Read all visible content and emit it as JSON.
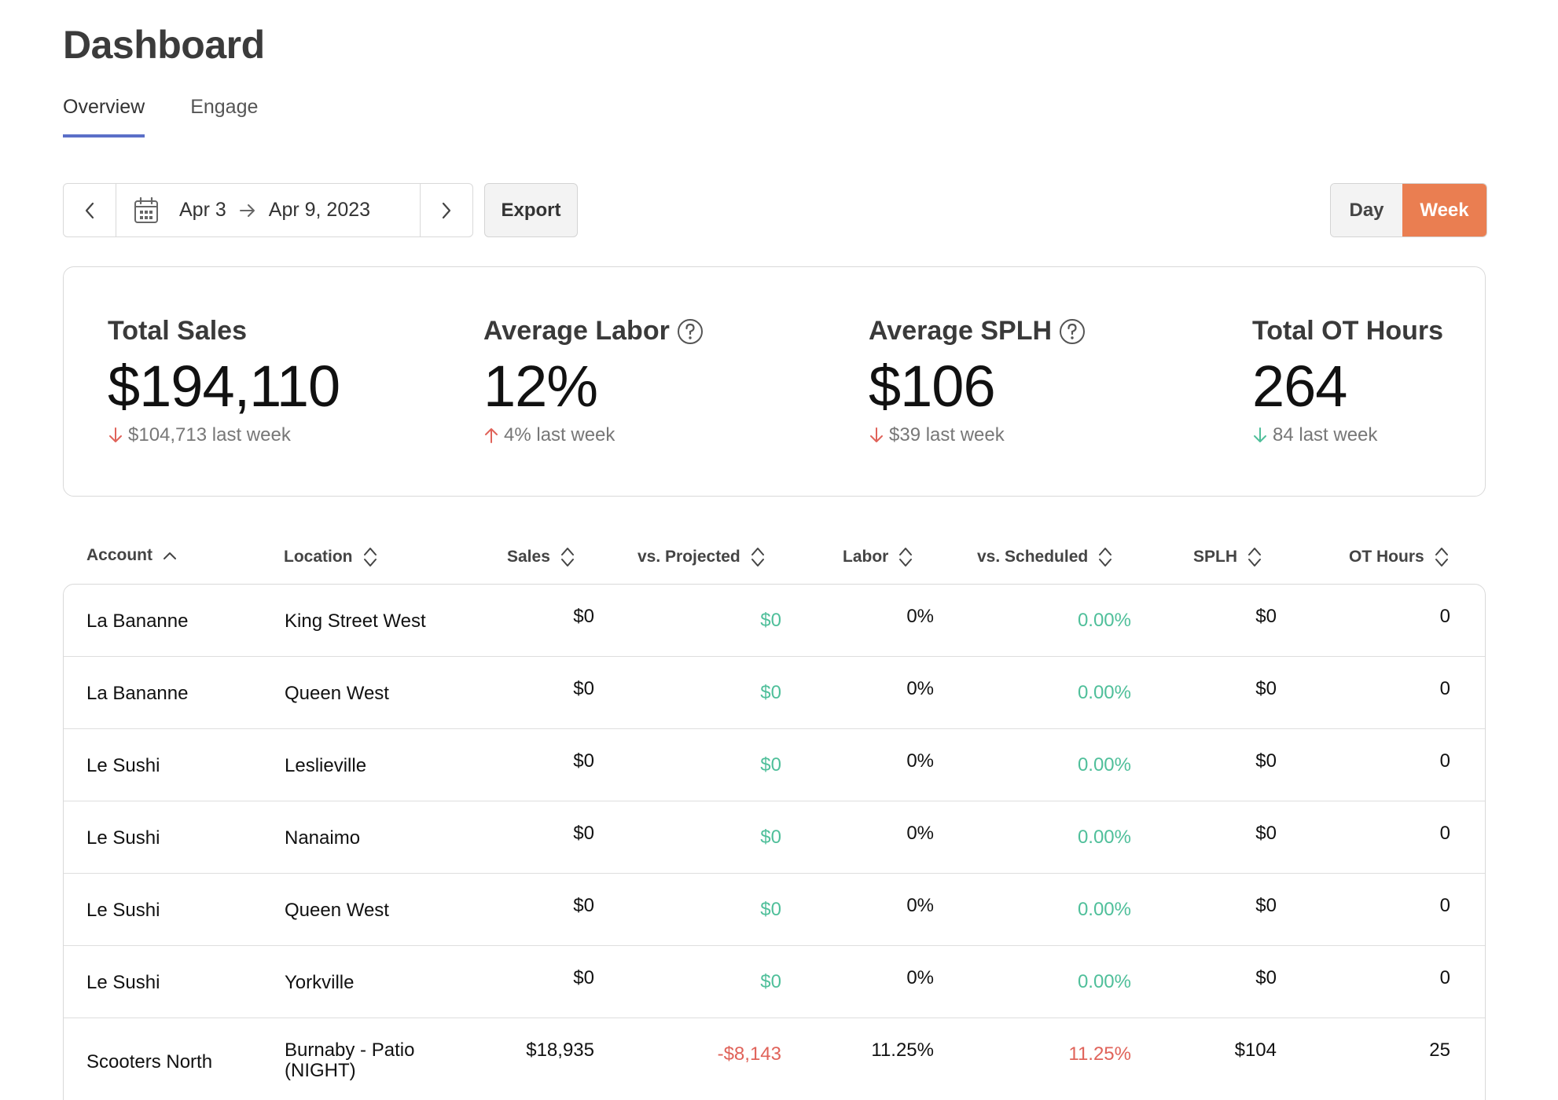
{
  "page": {
    "title": "Dashboard"
  },
  "tabs": [
    {
      "label": "Overview",
      "active": true
    },
    {
      "label": "Engage",
      "active": false
    }
  ],
  "toolbar": {
    "date_start": "Apr 3",
    "date_end": "Apr 9, 2023",
    "export_label": "Export",
    "period_day": "Day",
    "period_week": "Week",
    "period_selected": "Week"
  },
  "colors": {
    "accent": "#ea7e51",
    "tab_underline": "#5b6fc8",
    "positive": "#4fbf9a",
    "negative": "#e0635a"
  },
  "stats": [
    {
      "label": "Total Sales",
      "value": "$194,110",
      "change": "$104,713 last week",
      "direction": "down",
      "has_help": false
    },
    {
      "label": "Average Labor",
      "value": "12%",
      "change": "4% last week",
      "direction": "up",
      "has_help": true
    },
    {
      "label": "Average SPLH",
      "value": "$106",
      "change": "$39 last week",
      "direction": "down",
      "has_help": true
    },
    {
      "label": "Total OT Hours",
      "value": "264",
      "change": "84 last week",
      "direction": "down-good",
      "has_help": false
    }
  ],
  "table": {
    "columns": [
      {
        "label": "Account",
        "sort": "asc"
      },
      {
        "label": "Location",
        "sort": "none"
      },
      {
        "label": "Sales",
        "sort": "none"
      },
      {
        "label": "vs. Projected",
        "sort": "none"
      },
      {
        "label": "Labor",
        "sort": "none"
      },
      {
        "label": "vs. Scheduled",
        "sort": "none"
      },
      {
        "label": "SPLH",
        "sort": "none"
      },
      {
        "label": "OT Hours",
        "sort": "none"
      }
    ],
    "rows": [
      {
        "account": "La Bananne",
        "location": "King Street West",
        "sales": "$0",
        "vs_projected": "$0",
        "labor": "0%",
        "vs_scheduled": "0.00%",
        "splh": "$0",
        "ot_hours": "0",
        "status": "positive"
      },
      {
        "account": "La Bananne",
        "location": "Queen West",
        "sales": "$0",
        "vs_projected": "$0",
        "labor": "0%",
        "vs_scheduled": "0.00%",
        "splh": "$0",
        "ot_hours": "0",
        "status": "positive"
      },
      {
        "account": "Le Sushi",
        "location": "Leslieville",
        "sales": "$0",
        "vs_projected": "$0",
        "labor": "0%",
        "vs_scheduled": "0.00%",
        "splh": "$0",
        "ot_hours": "0",
        "status": "positive"
      },
      {
        "account": "Le Sushi",
        "location": "Nanaimo",
        "sales": "$0",
        "vs_projected": "$0",
        "labor": "0%",
        "vs_scheduled": "0.00%",
        "splh": "$0",
        "ot_hours": "0",
        "status": "positive"
      },
      {
        "account": "Le Sushi",
        "location": "Queen West",
        "sales": "$0",
        "vs_projected": "$0",
        "labor": "0%",
        "vs_scheduled": "0.00%",
        "splh": "$0",
        "ot_hours": "0",
        "status": "positive"
      },
      {
        "account": "Le Sushi",
        "location": "Yorkville",
        "sales": "$0",
        "vs_projected": "$0",
        "labor": "0%",
        "vs_scheduled": "0.00%",
        "splh": "$0",
        "ot_hours": "0",
        "status": "positive"
      },
      {
        "account": "Scooters North",
        "location": "Burnaby - Patio (NIGHT)",
        "sales": "$18,935",
        "vs_projected": "-$8,143",
        "labor": "11.25%",
        "vs_scheduled": "11.25%",
        "splh": "$104",
        "ot_hours": "25",
        "status": "negative"
      }
    ]
  }
}
